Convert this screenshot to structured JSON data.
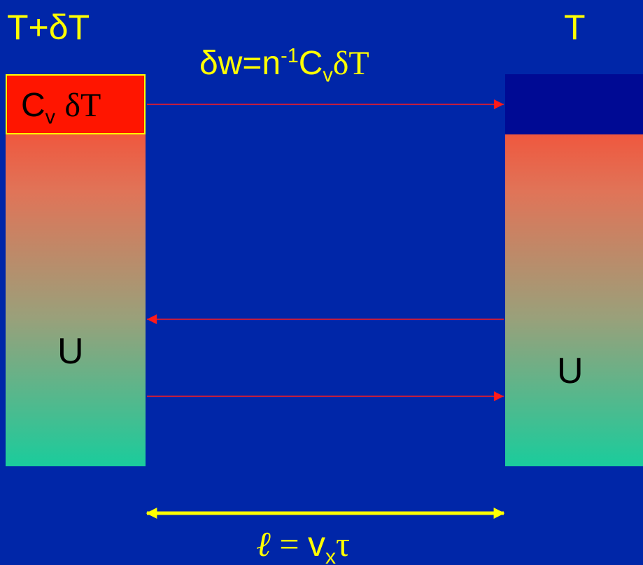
{
  "left_column": {
    "temperature_label": "T+δT",
    "heat_box_text": {
      "c": "C",
      "sub": "v",
      "dt": "δT"
    },
    "energy_label": "U"
  },
  "right_column": {
    "temperature_label": "T",
    "energy_label": "U"
  },
  "work_equation": {
    "prefix": "δw=n",
    "sup": "-1",
    "c": "C",
    "sub": "v",
    "dt": "δT"
  },
  "mean_free_path": {
    "ell": "ℓ",
    "eq": " = ",
    "v": "v",
    "sub": "x",
    "tau": "τ"
  },
  "colors": {
    "background": "#0026a8",
    "label_text": "#ffff00",
    "arrow": "#ff1a1a",
    "distance_arrow": "#ffff00",
    "heat_box": "#ff1500",
    "gradient_top": "#ff3a24",
    "gradient_bottom": "#1acc9c"
  }
}
